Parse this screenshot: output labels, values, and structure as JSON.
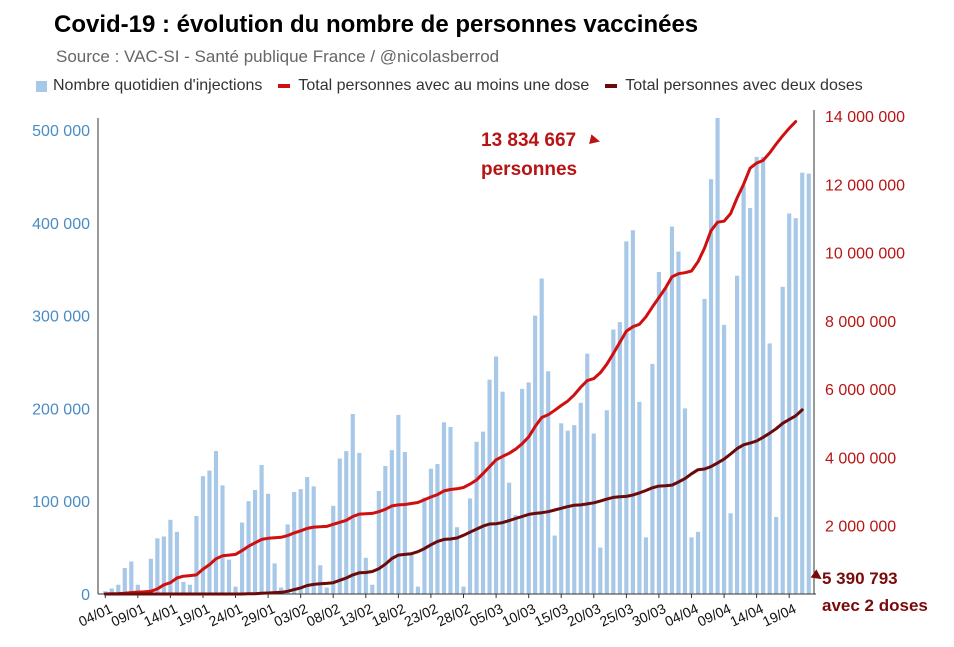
{
  "chart_data": {
    "type": "bar+line",
    "title": "Covid-19 : évolution du nombre de personnes vaccinées",
    "subtitle": "Source : VAC-SI - Santé publique France / @nicolasberrod",
    "legend": [
      {
        "label": "Nombre quotidien d'injections",
        "color": "#a8c8e8",
        "kind": "bar"
      },
      {
        "label": "Total personnes avec au moins une dose",
        "color": "#d01010",
        "kind": "line"
      },
      {
        "label": "Total personnes avec deux doses",
        "color": "#6b0a0a",
        "kind": "line"
      }
    ],
    "x_tick_labels": [
      "04/01",
      "09/01",
      "14/01",
      "19/01",
      "24/01",
      "29/01",
      "03/02",
      "08/02",
      "13/02",
      "18/02",
      "23/02",
      "28/02",
      "05/03",
      "10/03",
      "15/03",
      "20/03",
      "25/03",
      "30/03",
      "04/04",
      "09/04",
      "14/04",
      "19/04"
    ],
    "y_left": {
      "min": 0,
      "max": 500000,
      "ticks": [
        0,
        100000,
        200000,
        300000,
        400000,
        500000
      ],
      "tick_labels": [
        "0",
        "100 000",
        "200 000",
        "300 000",
        "400 000",
        "500 000"
      ],
      "color": "#4a8cc4"
    },
    "y_right": {
      "min": 0,
      "max": 14000000,
      "ticks": [
        2000000,
        4000000,
        6000000,
        8000000,
        10000000,
        12000000,
        14000000
      ],
      "tick_labels": [
        "2 000 000",
        "4 000 000",
        "6 000 000",
        "8 000 000",
        "10 000 000",
        "12 000 000",
        "14 000 000"
      ],
      "color": "#b81414"
    },
    "daily_injections": [
      3000,
      6000,
      10000,
      28000,
      35000,
      10000,
      4000,
      38000,
      60000,
      62000,
      80000,
      67000,
      13000,
      10000,
      84000,
      127000,
      133000,
      154000,
      117000,
      37000,
      8000,
      77000,
      100000,
      112000,
      139000,
      108000,
      33000,
      7000,
      75000,
      110000,
      113000,
      126000,
      116000,
      31000,
      7000,
      95000,
      146000,
      154000,
      194000,
      152000,
      39000,
      10000,
      111000,
      138000,
      155000,
      193000,
      153000,
      44000,
      8000,
      104000,
      135000,
      140000,
      185000,
      180000,
      72000,
      8000,
      103000,
      164000,
      175000,
      231000,
      256000,
      218000,
      120000,
      85000,
      221000,
      228000,
      300000,
      340000,
      240000,
      63000,
      184000,
      176000,
      182000,
      206000,
      259000,
      173000,
      50000,
      198000,
      285000,
      293000,
      380000,
      392000,
      207000,
      61000,
      248000,
      347000,
      330000,
      396000,
      369000,
      200000,
      61000,
      67000,
      318000,
      447000,
      513000,
      290000,
      87000,
      343000,
      440000,
      416000,
      471000,
      471000,
      270000,
      83000,
      331000,
      410000,
      405000,
      454000,
      453000
    ],
    "cumulative_one_dose": [
      0,
      5000,
      12000,
      22000,
      40000,
      55000,
      62000,
      80000,
      150000,
      270000,
      330000,
      470000,
      520000,
      540000,
      560000,
      730000,
      860000,
      1030000,
      1120000,
      1140000,
      1160000,
      1270000,
      1400000,
      1500000,
      1600000,
      1630000,
      1650000,
      1660000,
      1710000,
      1790000,
      1850000,
      1920000,
      1960000,
      1970000,
      1980000,
      2040000,
      2100000,
      2160000,
      2270000,
      2340000,
      2350000,
      2360000,
      2410000,
      2480000,
      2580000,
      2610000,
      2620000,
      2650000,
      2680000,
      2760000,
      2840000,
      2910000,
      3020000,
      3060000,
      3080000,
      3120000,
      3220000,
      3340000,
      3530000,
      3730000,
      3930000,
      4030000,
      4120000,
      4240000,
      4400000,
      4600000,
      4910000,
      5170000,
      5250000,
      5380000,
      5520000,
      5650000,
      5830000,
      6060000,
      6250000,
      6310000,
      6480000,
      6730000,
      7040000,
      7370000,
      7700000,
      7830000,
      7900000,
      8120000,
      8410000,
      8680000,
      8960000,
      9290000,
      9380000,
      9410000,
      9460000,
      9730000,
      10130000,
      10640000,
      10890000,
      10920000,
      11140000,
      11600000,
      12000000,
      12470000,
      12620000,
      12700000,
      12920000,
      13180000,
      13420000,
      13640000,
      13834667
    ],
    "cumulative_two_doses": [
      0,
      0,
      0,
      0,
      0,
      0,
      0,
      0,
      0,
      0,
      0,
      0,
      0,
      0,
      0,
      0,
      0,
      0,
      0,
      0,
      0,
      0,
      5000,
      10000,
      20000,
      30000,
      40000,
      50000,
      80000,
      130000,
      180000,
      250000,
      280000,
      300000,
      310000,
      330000,
      400000,
      470000,
      560000,
      620000,
      630000,
      660000,
      740000,
      870000,
      1040000,
      1140000,
      1160000,
      1180000,
      1240000,
      1330000,
      1440000,
      1540000,
      1600000,
      1610000,
      1640000,
      1720000,
      1810000,
      1900000,
      1990000,
      2050000,
      2060000,
      2090000,
      2150000,
      2210000,
      2270000,
      2330000,
      2360000,
      2380000,
      2410000,
      2460000,
      2510000,
      2560000,
      2600000,
      2610000,
      2640000,
      2670000,
      2720000,
      2780000,
      2830000,
      2850000,
      2860000,
      2900000,
      2960000,
      3030000,
      3110000,
      3160000,
      3170000,
      3190000,
      3280000,
      3380000,
      3520000,
      3640000,
      3660000,
      3730000,
      3840000,
      3950000,
      4100000,
      4260000,
      4370000,
      4420000,
      4480000,
      4590000,
      4710000,
      4840000,
      5000000,
      5110000,
      5220000,
      5390793
    ]
  },
  "annotations": {
    "one_dose_total": "13 834 667",
    "one_dose_unit": "personnes",
    "two_doses_total": "5 390 793",
    "two_doses_unit": "avec 2 doses"
  },
  "colors": {
    "bars": "#a8c8e8",
    "line_one_dose": "#d01010",
    "line_two_doses": "#6b0a0a",
    "annotation": "#b81414",
    "annotation_dark": "#7a0a0a",
    "axis_left_text": "#4a8cc4",
    "axis_right_text": "#b81414"
  }
}
